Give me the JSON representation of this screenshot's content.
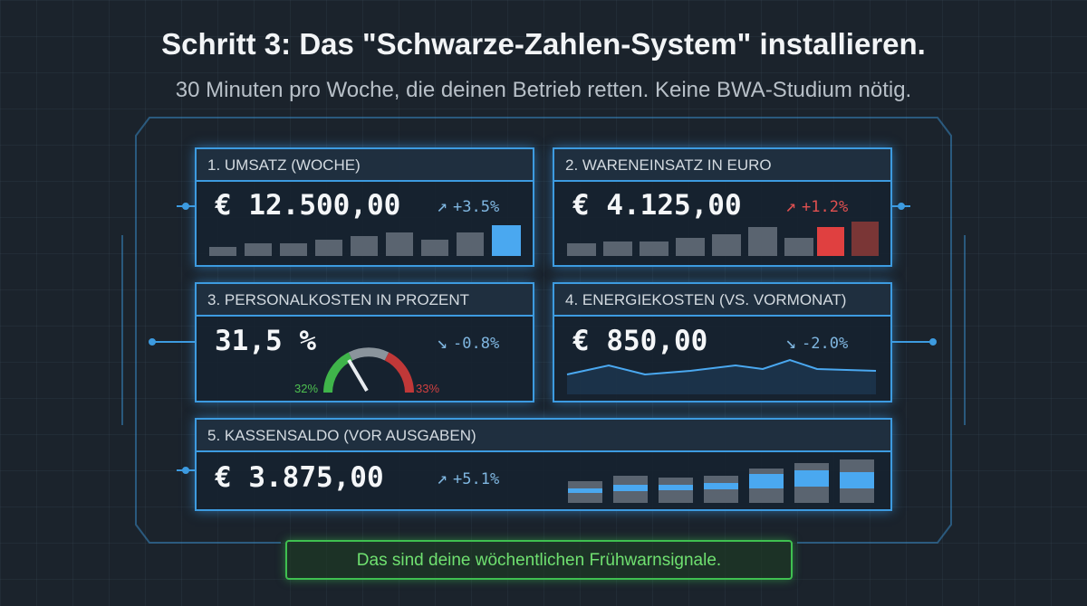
{
  "header": {
    "title": "Schritt 3: Das \"Schwarze-Zahlen-System\" installieren.",
    "subtitle": "30 Minuten pro Woche, die deinen Betrieb retten. Keine BWA-Studium nötig."
  },
  "cards": [
    {
      "label": "1. UMSATZ (WOCHE)",
      "value": "€ 12.500,00",
      "change": "+3.5%"
    },
    {
      "label": "2. WARENEINSATZ IN EURO",
      "value": "€ 4.125,00",
      "change": "+1.2%"
    },
    {
      "label": "3. PERSONALKOSTEN IN PROZENT",
      "value": "31,5 %",
      "change": "-0.8%",
      "gauge_min": "32%",
      "gauge_max": "33%"
    },
    {
      "label": "4. ENERGIEKOSTEN (VS. VORMONAT)",
      "value": "€ 850,00",
      "change": "-2.0%"
    },
    {
      "label": "5. KASSENSALDO (VOR AUSGABEN)",
      "value": "€ 3.875,00",
      "change": "+5.1%"
    }
  ],
  "footer": {
    "note": "Das sind deine wöchentlichen Frühwarnsignale."
  }
}
